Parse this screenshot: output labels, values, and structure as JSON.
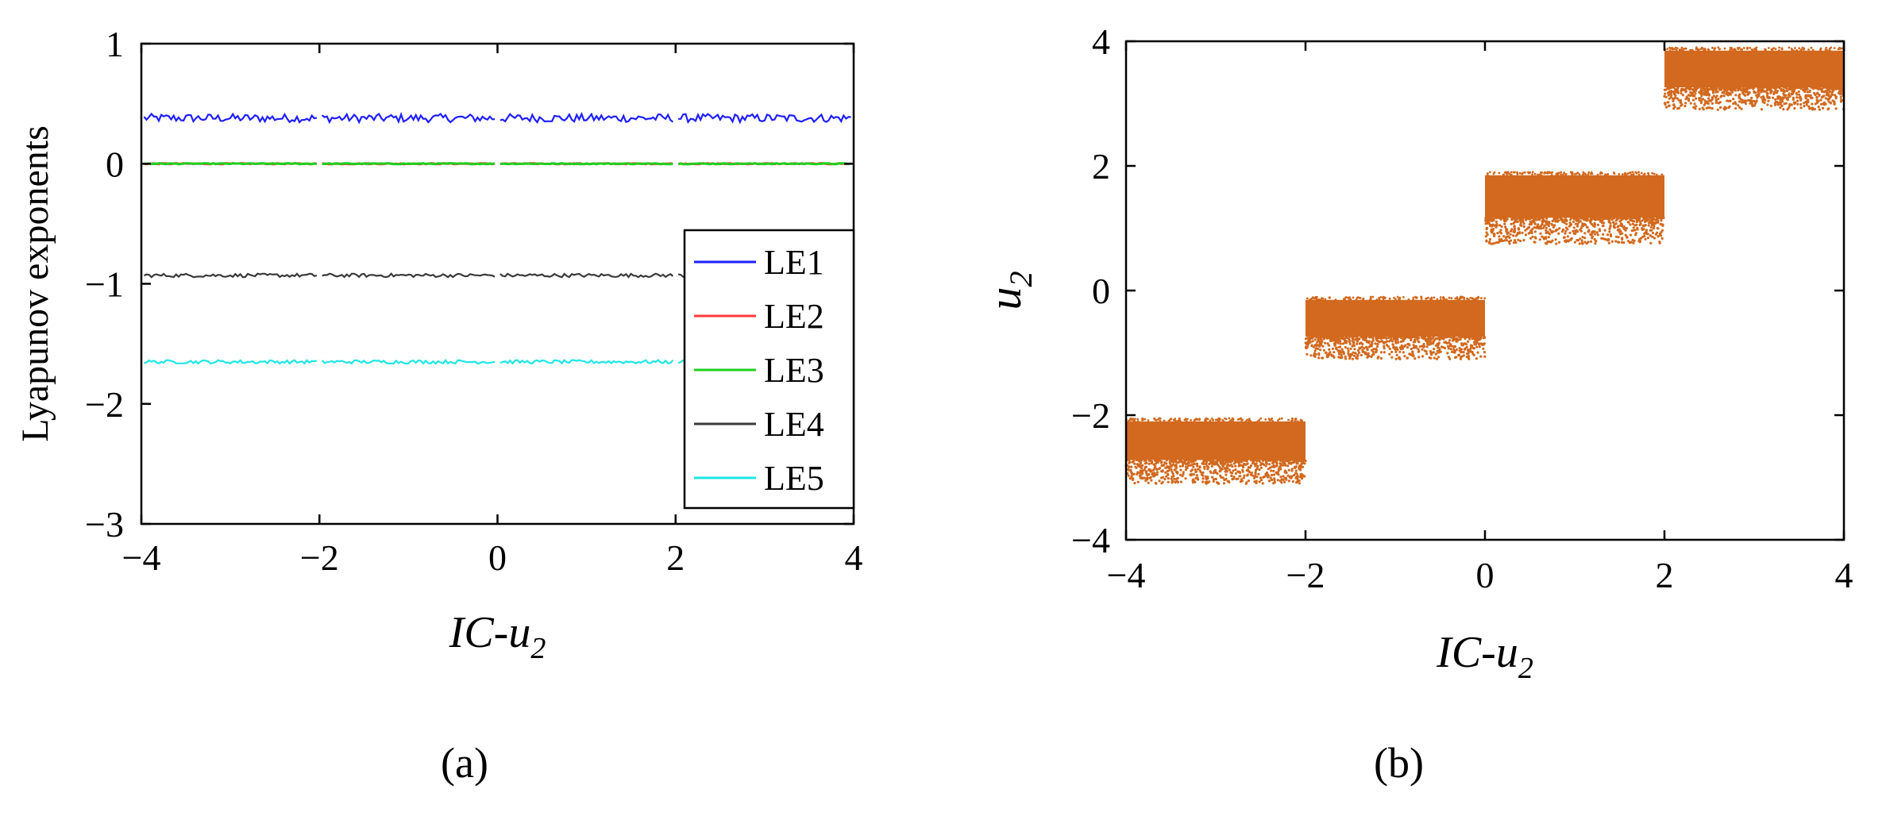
{
  "chart_data": [
    {
      "type": "line",
      "caption": "(a)",
      "xlabel_main": "IC-u",
      "xlabel_sub": "2",
      "ylabel": "Lyapunov exponents",
      "xlim": [
        -4,
        4
      ],
      "ylim": [
        -3,
        1
      ],
      "xticks": [
        "−4",
        "−2",
        "0",
        "2",
        "4"
      ],
      "yticks": [
        "−3",
        "−2",
        "−1",
        "0",
        "1"
      ],
      "grid": false,
      "legend_position": "bottom-right",
      "series": [
        {
          "name": "LE1",
          "color": "#1f1fff",
          "level": 0.38,
          "noise": 0.035,
          "pattern": "wavy"
        },
        {
          "name": "LE2",
          "color": "#ff3b3b",
          "level": 0.0,
          "noise": 0.004,
          "pattern": "flat"
        },
        {
          "name": "LE3",
          "color": "#1fd01f",
          "level": 0.0,
          "noise": 0.004,
          "pattern": "flat"
        },
        {
          "name": "LE4",
          "color": "#3a3a3a",
          "level": -0.93,
          "noise": 0.015,
          "pattern": "wavy"
        },
        {
          "name": "LE5",
          "color": "#1fe6e6",
          "level": -1.65,
          "noise": 0.015,
          "pattern": "wavy"
        }
      ],
      "segments": [
        [
          -4,
          -2
        ],
        [
          -2,
          0
        ],
        [
          0,
          2
        ],
        [
          2,
          4
        ]
      ]
    },
    {
      "type": "scatter",
      "caption": "(b)",
      "xlabel_main": "IC-u",
      "xlabel_sub": "2",
      "ylabel_main": "u",
      "ylabel_sub": "2",
      "xlim": [
        -4,
        4
      ],
      "ylim": [
        -4,
        4
      ],
      "xticks": [
        "−4",
        "−2",
        "0",
        "2",
        "4"
      ],
      "yticks": [
        "−4",
        "−2",
        "0",
        "2",
        "4"
      ],
      "grid": false,
      "color": "#d2691e",
      "blocks": [
        {
          "x": [
            -4,
            -2
          ],
          "y_top": -2.1,
          "y_bottom": -3.1
        },
        {
          "x": [
            -2,
            0
          ],
          "y_top": -0.15,
          "y_bottom": -1.1
        },
        {
          "x": [
            0,
            2
          ],
          "y_top": 1.85,
          "y_bottom": 0.75
        },
        {
          "x": [
            2,
            4
          ],
          "y_top": 3.85,
          "y_bottom": 2.9
        }
      ]
    }
  ]
}
